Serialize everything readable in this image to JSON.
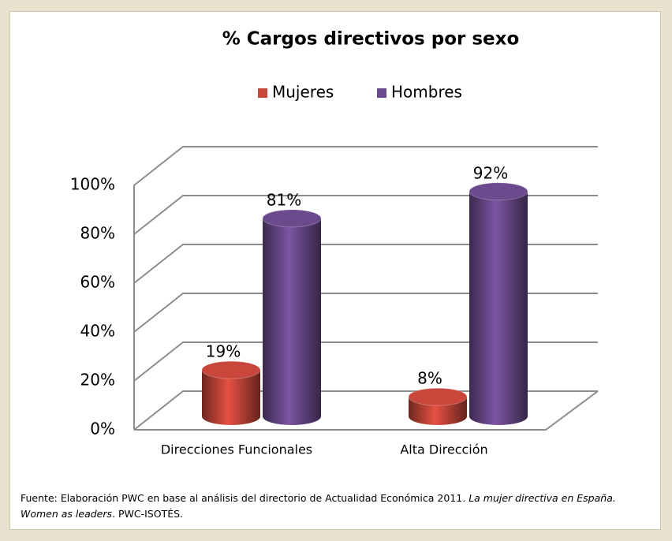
{
  "chart_data": {
    "type": "bar3d",
    "title": "% Cargos directivos por sexo",
    "categories": [
      "Direcciones Funcionales",
      "Alta Dirección"
    ],
    "series": [
      {
        "name": "Mujeres",
        "color": "#c8463a",
        "values": [
          19,
          8
        ],
        "value_labels": [
          "19%",
          "8%"
        ]
      },
      {
        "name": "Hombres",
        "color": "#6b4a8e",
        "values": [
          81,
          92
        ],
        "value_labels": [
          "81%",
          "92%"
        ]
      }
    ],
    "ylim": [
      0,
      100
    ],
    "yticks": [
      {
        "value": 0,
        "label": "0%"
      },
      {
        "value": 20,
        "label": "20%"
      },
      {
        "value": 40,
        "label": "40%"
      },
      {
        "value": 60,
        "label": "60%"
      },
      {
        "value": 80,
        "label": "80%"
      },
      {
        "value": 100,
        "label": "100%"
      }
    ],
    "grid": true,
    "legend": "top"
  },
  "source": [
    "Fuente: Elaboración PWC en base al análisis del directorio de Actualidad Económica 2011.",
    "La mujer directiva en España. Women as leaders",
    ". PWC-ISOTÉS."
  ]
}
